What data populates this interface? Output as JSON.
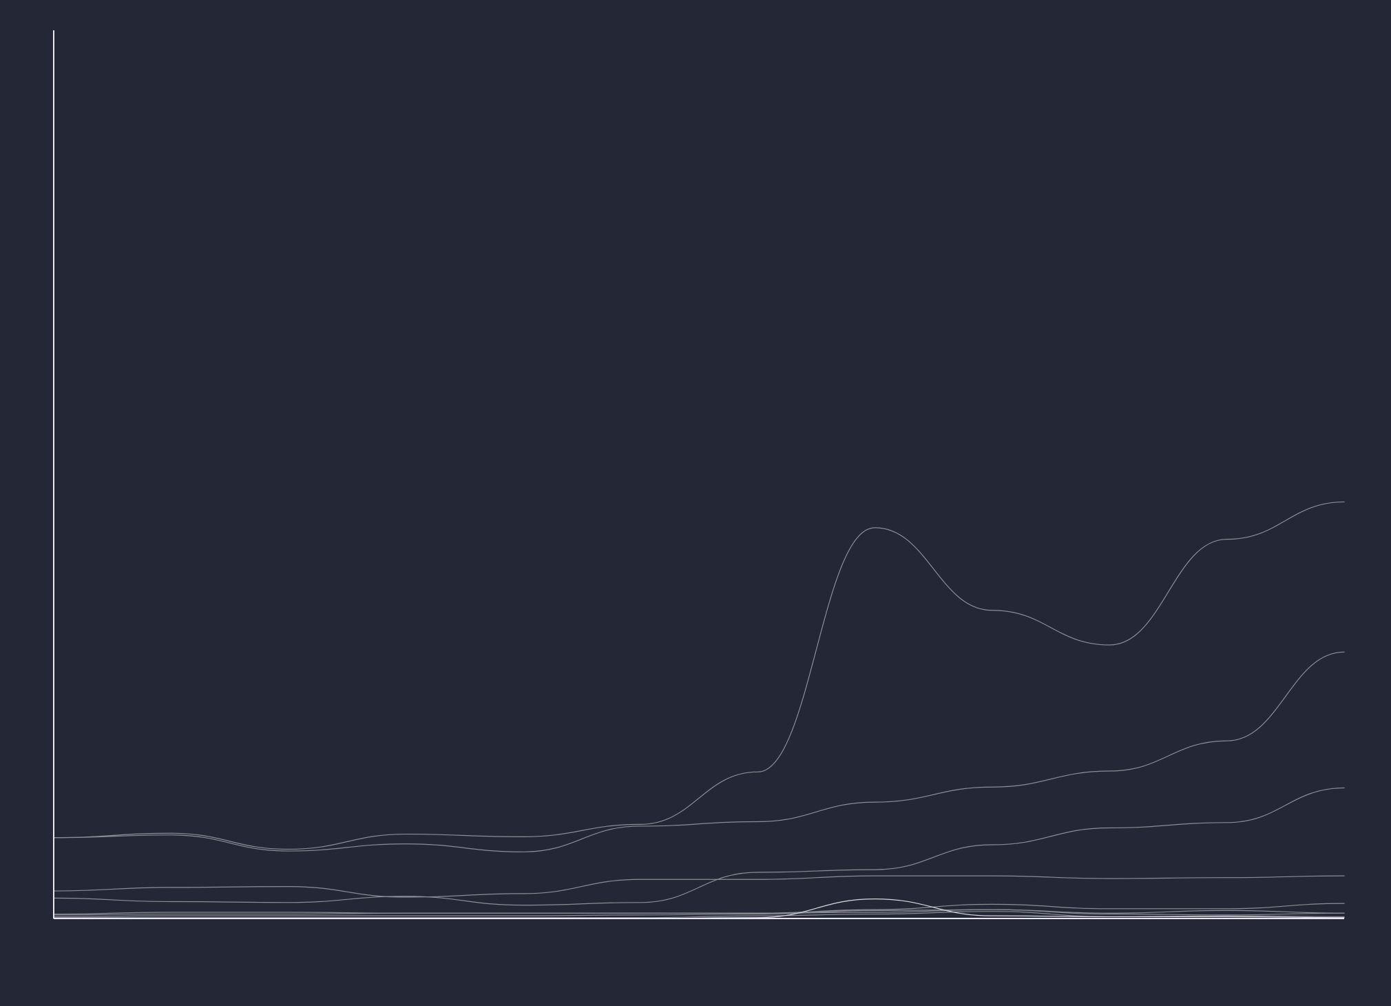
{
  "colors": {
    "background": "#242836",
    "axis": "#e8e8ee",
    "series_default": "#8b8d96",
    "series_highlight": "#d8d8de"
  },
  "chart_data": {
    "type": "line",
    "title": "",
    "xlabel": "",
    "ylabel": "",
    "grid": false,
    "legend": "none",
    "x": [
      0,
      1,
      2,
      3,
      4,
      5,
      6,
      7,
      8,
      9,
      10,
      11
    ],
    "xlim": [
      0,
      11
    ],
    "ylim": [
      0,
      1000
    ],
    "series": [
      {
        "values": [
          91,
          96,
          78,
          95,
          92,
          106,
          165,
          440,
          347,
          308,
          427,
          469
        ],
        "highlight": false
      },
      {
        "values": [
          91,
          94,
          76,
          84,
          75,
          104,
          109,
          131,
          148,
          166,
          200,
          300
        ],
        "highlight": false
      },
      {
        "values": [
          23,
          19,
          18,
          25,
          15,
          18,
          52,
          55,
          83,
          102,
          108,
          147
        ],
        "highlight": false
      },
      {
        "values": [
          31,
          35,
          36,
          24,
          28,
          44,
          44,
          48,
          48,
          45,
          46,
          48
        ],
        "highlight": false
      },
      {
        "values": [
          4,
          5,
          5,
          6,
          6,
          6,
          6,
          10,
          16,
          11,
          11,
          17
        ],
        "highlight": false
      },
      {
        "values": [
          2,
          3,
          3,
          3,
          3,
          4,
          5,
          9,
          10,
          6,
          9,
          6
        ],
        "highlight": false
      },
      {
        "values": [
          1,
          1,
          1,
          1,
          1,
          1,
          3,
          5,
          8,
          2,
          3,
          2
        ],
        "highlight": false
      },
      {
        "values": [
          5,
          7,
          7,
          6,
          6,
          6,
          6,
          7,
          10,
          5,
          4,
          6
        ],
        "highlight": false
      },
      {
        "values": [
          0,
          0,
          0,
          0,
          0,
          0,
          1,
          22,
          3,
          2,
          2,
          1
        ],
        "highlight": true
      }
    ]
  }
}
